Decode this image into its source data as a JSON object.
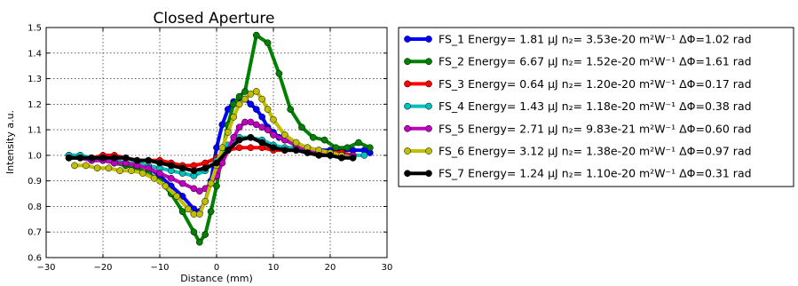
{
  "chart_data": {
    "type": "line",
    "title": "Closed Aperture",
    "xlabel": "Distance (mm)",
    "ylabel": "Intensity a.u.",
    "xlim": [
      -30,
      30
    ],
    "ylim": [
      0.6,
      1.5
    ],
    "xticks": [
      "−30",
      "−20",
      "−10",
      "0",
      "10",
      "20",
      "30"
    ],
    "yticks": [
      "0.6",
      "0.7",
      "0.8",
      "0.9",
      "1.0",
      "1.1",
      "1.2",
      "1.3",
      "1.4",
      "1.5"
    ],
    "grid": true,
    "legend_position": "outside-right",
    "series": [
      {
        "name": "FS_1 Energy= 1.81 μJ n₂=  3.53e-20 m²W⁻¹ ΔΦ=1.02 rad",
        "color": "#0000ff",
        "x": [
          -26,
          -24,
          -22,
          -20,
          -18,
          -16,
          -14,
          -12,
          -10,
          -8,
          -6,
          -4,
          -3,
          -2,
          -1,
          0,
          1,
          2,
          3,
          4,
          5,
          6,
          7,
          8,
          9,
          10,
          11,
          12,
          14,
          16,
          18,
          20,
          22,
          24,
          26,
          27
        ],
        "y": [
          1.0,
          1.0,
          0.99,
          0.99,
          0.98,
          0.97,
          0.97,
          0.95,
          0.92,
          0.88,
          0.84,
          0.79,
          0.78,
          0.82,
          0.9,
          1.03,
          1.12,
          1.18,
          1.21,
          1.22,
          1.22,
          1.2,
          1.18,
          1.15,
          1.11,
          1.09,
          1.07,
          1.06,
          1.04,
          1.03,
          1.02,
          1.02,
          1.02,
          1.02,
          1.02,
          1.01
        ]
      },
      {
        "name": "FS_2 Energy= 6.67 μJ n₂=  1.52e-20 m²W⁻¹ ΔΦ=1.61 rad",
        "color": "#008000",
        "x": [
          -26,
          -24,
          -22,
          -20,
          -18,
          -16,
          -14,
          -12,
          -10,
          -8,
          -6,
          -4,
          -3,
          -2,
          -1,
          0,
          1,
          2,
          3,
          4,
          5,
          7,
          9,
          11,
          13,
          15,
          17,
          19,
          21,
          23,
          25,
          27
        ],
        "y": [
          0.99,
          0.99,
          0.98,
          0.98,
          0.97,
          0.96,
          0.95,
          0.93,
          0.9,
          0.85,
          0.78,
          0.7,
          0.66,
          0.69,
          0.78,
          0.88,
          1.01,
          1.12,
          1.2,
          1.23,
          1.25,
          1.47,
          1.44,
          1.32,
          1.18,
          1.11,
          1.07,
          1.06,
          1.03,
          1.03,
          1.05,
          1.03
        ]
      },
      {
        "name": "FS_3 Energy= 0.64 μJ n₂=  1.20e-20 m²W⁻¹ ΔΦ=0.17 rad",
        "color": "#ff0000",
        "x": [
          -26,
          -24,
          -22,
          -20,
          -18,
          -16,
          -14,
          -12,
          -10,
          -8,
          -6,
          -4,
          -2,
          0,
          2,
          4,
          6,
          8,
          10,
          12,
          14,
          16,
          18,
          20,
          22,
          24
        ],
        "y": [
          1.0,
          0.99,
          0.99,
          1.0,
          1.0,
          0.99,
          0.98,
          0.98,
          0.98,
          0.97,
          0.96,
          0.96,
          0.97,
          0.99,
          1.02,
          1.03,
          1.03,
          1.03,
          1.02,
          1.02,
          1.02,
          1.02,
          1.01,
          1.01,
          1.01,
          1.0
        ]
      },
      {
        "name": "FS_4 Energy= 1.43 μJ n₂=  1.18e-20 m²W⁻¹ ΔΦ=0.38 rad",
        "color": "#00bfbf",
        "x": [
          -26,
          -24,
          -22,
          -20,
          -18,
          -16,
          -14,
          -12,
          -10,
          -8,
          -6,
          -4,
          -2,
          0,
          2,
          4,
          6,
          8,
          10,
          12,
          14,
          16,
          18,
          20,
          22,
          24,
          26
        ],
        "y": [
          1.0,
          1.0,
          0.99,
          0.99,
          0.98,
          0.97,
          0.97,
          0.96,
          0.95,
          0.94,
          0.93,
          0.92,
          0.94,
          0.98,
          1.04,
          1.07,
          1.07,
          1.06,
          1.04,
          1.03,
          1.03,
          1.02,
          1.01,
          1.0,
          1.0,
          1.0,
          1.0
        ]
      },
      {
        "name": "FS_5 Energy= 2.71 μJ n₂=  9.83e-21 m²W⁻¹ ΔΦ=0.60 rad",
        "color": "#bf00bf",
        "x": [
          -26,
          -24,
          -22,
          -20,
          -18,
          -16,
          -14,
          -12,
          -10,
          -8,
          -6,
          -4,
          -3,
          -2,
          -1,
          0,
          1,
          2,
          3,
          4,
          5,
          6,
          7,
          8,
          9,
          10,
          12,
          14,
          16,
          18,
          20,
          22,
          24
        ],
        "y": [
          0.99,
          0.99,
          0.98,
          0.98,
          0.97,
          0.97,
          0.96,
          0.95,
          0.93,
          0.91,
          0.89,
          0.87,
          0.86,
          0.87,
          0.89,
          0.92,
          0.97,
          1.02,
          1.07,
          1.11,
          1.13,
          1.13,
          1.12,
          1.11,
          1.1,
          1.08,
          1.06,
          1.04,
          1.02,
          1.01,
          1.0,
          1.0,
          1.0
        ]
      },
      {
        "name": "FS_6 Energy= 3.12 μJ n₂=  1.38e-20 m²W⁻¹ ΔΦ=0.97 rad",
        "color": "#bfbf00",
        "x": [
          -25,
          -23,
          -21,
          -19,
          -17,
          -15,
          -13,
          -11,
          -9,
          -7,
          -5,
          -4,
          -3,
          -2,
          -1,
          0,
          1,
          2,
          3,
          4,
          5,
          6,
          7,
          8,
          9,
          10,
          12,
          14,
          16,
          18,
          20,
          22,
          24
        ],
        "y": [
          0.96,
          0.96,
          0.95,
          0.95,
          0.94,
          0.94,
          0.93,
          0.91,
          0.88,
          0.84,
          0.79,
          0.77,
          0.77,
          0.82,
          0.89,
          0.96,
          1.03,
          1.09,
          1.15,
          1.2,
          1.22,
          1.24,
          1.25,
          1.22,
          1.18,
          1.14,
          1.08,
          1.05,
          1.03,
          1.02,
          1.01,
          1.0,
          0.99
        ]
      },
      {
        "name": "FS_7 Energy= 1.24 μJ n₂=  1.10e-20 m²W⁻¹ ΔΦ=0.31 rad",
        "color": "#000000",
        "x": [
          -26,
          -24,
          -22,
          -20,
          -18,
          -16,
          -14,
          -12,
          -10,
          -8,
          -6,
          -4,
          -2,
          0,
          2,
          4,
          6,
          8,
          10,
          12,
          14,
          16,
          18,
          20,
          22,
          24
        ],
        "y": [
          0.99,
          0.99,
          0.99,
          0.99,
          0.99,
          0.99,
          0.98,
          0.98,
          0.97,
          0.96,
          0.95,
          0.94,
          0.95,
          0.97,
          1.02,
          1.06,
          1.07,
          1.05,
          1.03,
          1.02,
          1.02,
          1.01,
          1.0,
          1.0,
          0.99,
          0.99
        ]
      }
    ]
  }
}
